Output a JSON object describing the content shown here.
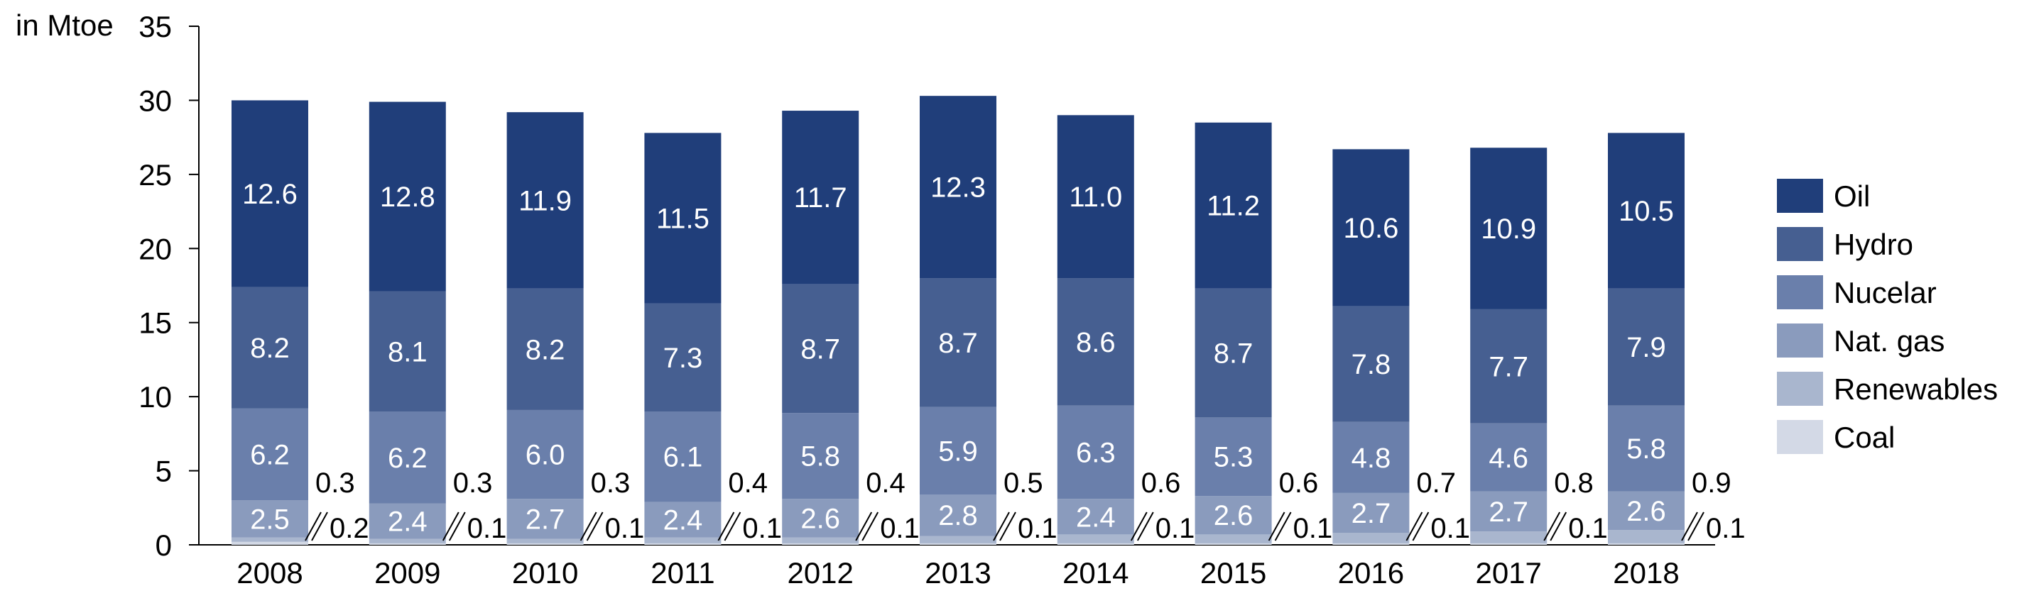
{
  "chart_data": {
    "type": "bar",
    "stacked": true,
    "unit_label": "in Mtoe",
    "categories": [
      "2008",
      "2009",
      "2010",
      "2011",
      "2012",
      "2013",
      "2014",
      "2015",
      "2016",
      "2017",
      "2018"
    ],
    "ylim": [
      0,
      35
    ],
    "yticks": [
      0,
      5,
      10,
      15,
      20,
      25,
      30,
      35
    ],
    "series": [
      {
        "name": "Coal",
        "color": "#d3d9e6",
        "values": [
          0.2,
          0.1,
          0.1,
          0.1,
          0.1,
          0.1,
          0.1,
          0.1,
          0.1,
          0.1,
          0.1
        ]
      },
      {
        "name": "Renewables",
        "color": "#a9b6ce",
        "values": [
          0.3,
          0.3,
          0.3,
          0.4,
          0.4,
          0.5,
          0.6,
          0.6,
          0.7,
          0.8,
          0.9
        ]
      },
      {
        "name": "Nat. gas",
        "color": "#8a9bbd",
        "values": [
          2.5,
          2.4,
          2.7,
          2.4,
          2.6,
          2.8,
          2.4,
          2.6,
          2.7,
          2.7,
          2.6
        ]
      },
      {
        "name": "Nucelar",
        "color": "#6a7fab",
        "values": [
          6.2,
          6.2,
          6.0,
          6.1,
          5.8,
          5.9,
          6.3,
          5.3,
          4.8,
          4.6,
          5.8
        ]
      },
      {
        "name": "Hydro",
        "color": "#465f91",
        "values": [
          8.2,
          8.1,
          8.2,
          7.3,
          8.7,
          8.7,
          8.6,
          8.7,
          7.8,
          7.7,
          7.9
        ]
      },
      {
        "name": "Oil",
        "color": "#203e7a",
        "values": [
          12.6,
          12.8,
          11.9,
          11.5,
          11.7,
          12.3,
          11.0,
          11.2,
          10.6,
          10.9,
          10.5
        ]
      }
    ],
    "legend_position": "right",
    "grid": false
  }
}
